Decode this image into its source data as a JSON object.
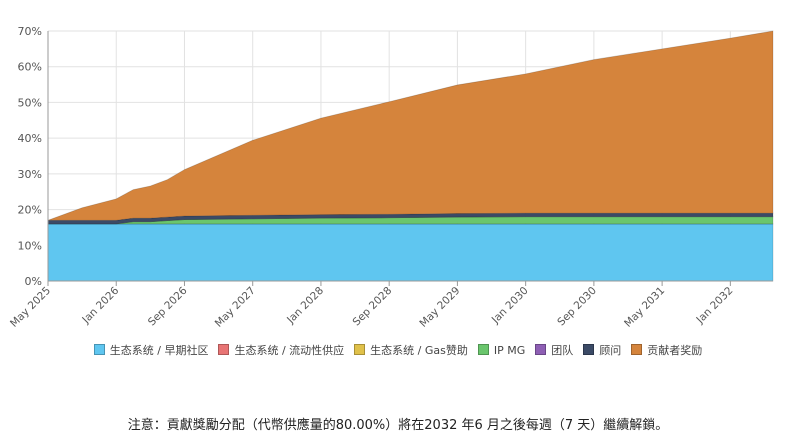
{
  "chart_data": {
    "type": "area",
    "stacked": true,
    "x_labels": [
      "May 2025",
      "Jan 2026",
      "Sep 2026",
      "May 2027",
      "Jan 2028",
      "Sep 2028",
      "May 2029",
      "Jan 2030",
      "Sep 2030",
      "May 2031",
      "Jan 2032"
    ],
    "y_ticks": [
      "0%",
      "10%",
      "20%",
      "30%",
      "40%",
      "50%",
      "60%",
      "70%"
    ],
    "ylim": [
      0,
      70
    ],
    "grid": true,
    "legend_position": "bottom",
    "x_points": [
      "May 2025",
      "Sep 2025",
      "Jan 2026",
      "Mar 2026",
      "May 2026",
      "Jul 2026",
      "Sep 2026",
      "May 2027",
      "Jan 2028",
      "Sep 2028",
      "May 2029",
      "Jan 2030",
      "Sep 2030",
      "May 2031",
      "Jan 2032",
      "Jun 2032"
    ],
    "series": [
      {
        "name": "生态系统 / 早期社区",
        "color": "#5fc6f0",
        "values": [
          16,
          16,
          16,
          16,
          16,
          16,
          16,
          16,
          16,
          16,
          16,
          16,
          16,
          16,
          16,
          16
        ]
      },
      {
        "name": "生态系统 / 流动性供应",
        "color": "#e87474",
        "values": [
          0,
          0,
          0,
          0,
          0,
          0,
          0,
          0,
          0,
          0,
          0,
          0,
          0,
          0,
          0,
          0
        ]
      },
      {
        "name": "生态系统 / Gas赞助",
        "color": "#e0c14a",
        "values": [
          0,
          0,
          0,
          0,
          0,
          0,
          0,
          0,
          0,
          0,
          0,
          0,
          0,
          0,
          0,
          0
        ]
      },
      {
        "name": "IP MG",
        "color": "#6ac66d",
        "values": [
          0,
          0,
          0,
          0.6,
          0.6,
          0.9,
          1.2,
          1.4,
          1.6,
          1.7,
          1.9,
          2,
          2,
          2,
          2,
          2
        ]
      },
      {
        "name": "团队",
        "color": "#8e5fb4",
        "values": [
          0,
          0,
          0,
          0,
          0,
          0,
          0,
          0,
          0,
          0,
          0,
          0,
          0,
          0,
          0,
          0
        ]
      },
      {
        "name": "顾问",
        "color": "#3b4a66",
        "values": [
          1,
          1,
          1,
          1,
          1,
          1,
          1,
          1,
          1,
          1,
          1,
          1,
          1,
          1,
          1,
          1
        ]
      },
      {
        "name": "贡献者奖励",
        "color": "#d5843c",
        "values": [
          0,
          3.5,
          6,
          8,
          9,
          10.5,
          13,
          21,
          27,
          31.5,
          36,
          39,
          43,
          46,
          49,
          51
        ]
      }
    ]
  },
  "note": "注意：貢獻獎勵分配（代幣供應量的80.00%）將在2032 年6 月之後每週（7 天）繼續解鎖。"
}
